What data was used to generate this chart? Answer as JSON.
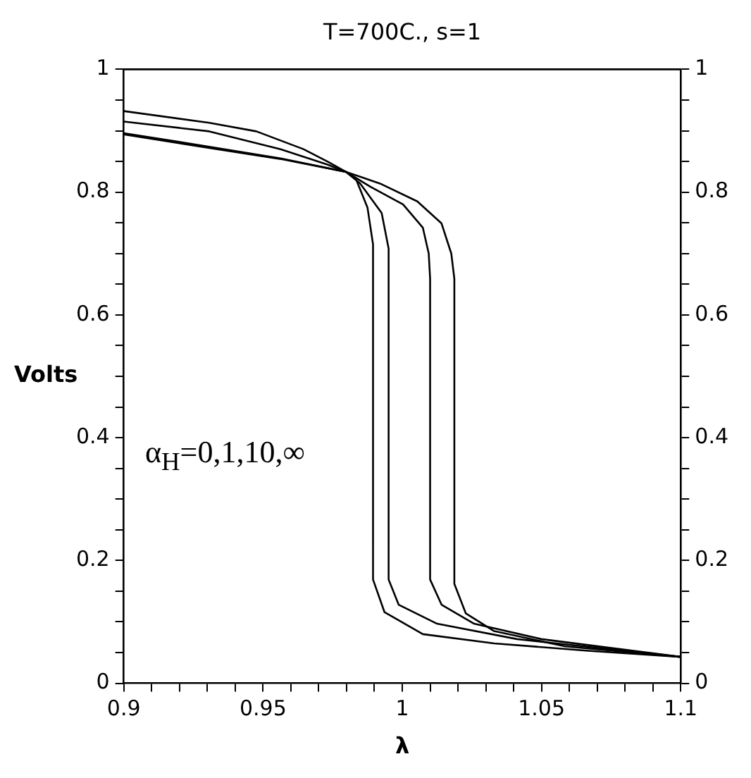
{
  "chart_data": {
    "type": "line",
    "title": "T=700C., s=1",
    "xlabel": "λ",
    "ylabel": "Volts",
    "annotations": [
      "α$_{H}$=0,1,10,∞"
    ],
    "xlim": [
      0.9,
      1.1
    ],
    "xticks": [
      0.9,
      {
        "value": 0.91,
        "label": null
      },
      {
        "value": 0.92,
        "label": null
      },
      {
        "value": 0.93,
        "label": null
      },
      {
        "value": 0.94,
        "label": null
      },
      0.95,
      {
        "value": 0.96,
        "label": null
      },
      {
        "value": 0.97,
        "label": null
      },
      {
        "value": 0.98,
        "label": null
      },
      {
        "value": 0.99,
        "label": null
      },
      1,
      {
        "value": 1.01,
        "label": null
      },
      {
        "value": 1.02,
        "label": null
      },
      {
        "value": 1.03,
        "label": null
      },
      {
        "value": 1.04,
        "label": null
      },
      1.05,
      {
        "value": 1.06,
        "label": null
      },
      {
        "value": 1.07,
        "label": null
      },
      {
        "value": 1.08,
        "label": null
      },
      {
        "value": 1.09,
        "label": null
      },
      1.1
    ],
    "ylim": [
      0,
      1
    ],
    "yticks": [
      0,
      {
        "value": 0.05,
        "label": null
      },
      {
        "value": 0.1,
        "label": null
      },
      {
        "value": 0.15,
        "label": null
      },
      0.2,
      {
        "value": 0.25,
        "label": null
      },
      {
        "value": 0.3,
        "label": null
      },
      {
        "value": 0.35,
        "label": null
      },
      0.4,
      {
        "value": 0.45,
        "label": null
      },
      {
        "value": 0.5,
        "label": null
      },
      {
        "value": 0.55,
        "label": null
      },
      0.6,
      {
        "value": 0.65,
        "label": null
      },
      {
        "value": 0.7,
        "label": null
      },
      {
        "value": 0.75,
        "label": null
      },
      0.8,
      {
        "value": 0.85,
        "label": null
      },
      {
        "value": 0.9,
        "label": null
      },
      {
        "value": 0.95,
        "label": null
      },
      1
    ],
    "y2lim": [
      0,
      1
    ],
    "y2ticks": [
      0,
      {
        "value": 0.05,
        "label": null
      },
      {
        "value": 0.1,
        "label": null
      },
      {
        "value": 0.15,
        "label": null
      },
      0.2,
      {
        "value": 0.25,
        "label": null
      },
      {
        "value": 0.3,
        "label": null
      },
      {
        "value": 0.35,
        "label": null
      },
      0.4,
      {
        "value": 0.45,
        "label": null
      },
      {
        "value": 0.5,
        "label": null
      },
      {
        "value": 0.55,
        "label": null
      },
      0.6,
      {
        "value": 0.65,
        "label": null
      },
      {
        "value": 0.7,
        "label": null
      },
      {
        "value": 0.75,
        "label": null
      },
      0.8,
      {
        "value": 0.85,
        "label": null
      },
      {
        "value": 0.9,
        "label": null
      },
      {
        "value": 0.95,
        "label": null
      },
      1
    ],
    "legend": false,
    "grid": false,
    "marker": "none",
    "line_style": "solid",
    "series": [
      {
        "color": "#000000",
        "x": [
          0.9,
          0.9307,
          0.9476,
          0.9645,
          0.9731,
          0.9798,
          0.9834,
          0.9875,
          0.9895,
          0.9895,
          0.9936,
          1.0074,
          1.033,
          1.0668,
          1.1
        ],
        "values": [
          0.932,
          0.913,
          0.899,
          0.87,
          0.85,
          0.833,
          0.821,
          0.775,
          0.715,
          0.169,
          0.116,
          0.08,
          0.065,
          0.053,
          0.043
        ]
      },
      {
        "color": "#000000",
        "x": [
          0.9,
          0.9307,
          0.9563,
          0.9731,
          0.9798,
          0.9849,
          0.9926,
          0.9951,
          0.9951,
          0.9987,
          1.0125,
          1.0412,
          1.1
        ],
        "values": [
          0.915,
          0.899,
          0.87,
          0.845,
          0.833,
          0.814,
          0.766,
          0.708,
          0.169,
          0.128,
          0.097,
          0.072,
          0.043
        ]
      },
      {
        "color": "#000000",
        "x": [
          0.9,
          0.9307,
          0.9563,
          0.9798,
          0.9885,
          1.0003,
          1.0074,
          1.0095,
          1.01,
          1.01,
          1.0141,
          1.0258,
          1.0499,
          1.1
        ],
        "values": [
          0.896,
          0.874,
          0.855,
          0.833,
          0.809,
          0.78,
          0.742,
          0.7,
          0.659,
          0.169,
          0.128,
          0.097,
          0.072,
          0.043
        ]
      },
      {
        "color": "#000000",
        "x": [
          0.9,
          0.9307,
          0.9563,
          0.9798,
          0.992,
          1.0054,
          1.0141,
          1.0176,
          1.0187,
          1.0187,
          1.0228,
          1.033,
          1.0586,
          1.1
        ],
        "values": [
          0.894,
          0.872,
          0.854,
          0.833,
          0.814,
          0.785,
          0.749,
          0.7,
          0.659,
          0.162,
          0.114,
          0.085,
          0.06,
          0.043
        ]
      }
    ]
  }
}
